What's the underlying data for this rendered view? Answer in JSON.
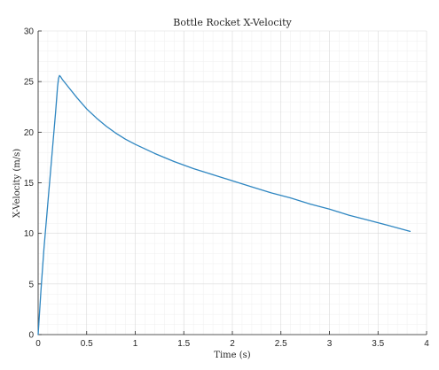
{
  "chart_data": {
    "type": "line",
    "title": "Bottle Rocket X-Velocity",
    "xlabel": "Time (s)",
    "ylabel": "X-Velocity (m/s)",
    "xlim": [
      0,
      4
    ],
    "ylim": [
      0,
      30
    ],
    "xticks": [
      0,
      0.5,
      1,
      1.5,
      2,
      2.5,
      3,
      3.5,
      4
    ],
    "xtick_labels": [
      "0",
      "0.5",
      "1",
      "1.5",
      "2",
      "2.5",
      "3",
      "3.5",
      "4"
    ],
    "yticks": [
      0,
      5,
      10,
      15,
      20,
      25,
      30
    ],
    "ytick_labels": [
      "0",
      "5",
      "10",
      "15",
      "20",
      "25",
      "30"
    ],
    "grid": true,
    "minor_grid": true,
    "line_color": "#2e86c1",
    "series": [
      {
        "x": [
          0,
          0.03,
          0.06,
          0.1,
          0.14,
          0.18,
          0.2,
          0.21,
          0.22,
          0.23,
          0.25,
          0.3,
          0.4,
          0.5,
          0.6,
          0.7,
          0.8,
          0.9,
          1.0,
          1.2,
          1.4,
          1.6,
          1.8,
          2.0,
          2.2,
          2.4,
          2.6,
          2.8,
          3.0,
          3.2,
          3.4,
          3.6,
          3.83
        ],
        "y": [
          0,
          4.5,
          8.5,
          13,
          17.5,
          22,
          24.5,
          25.3,
          25.6,
          25.5,
          25.2,
          24.6,
          23.4,
          22.3,
          21.4,
          20.6,
          19.9,
          19.3,
          18.8,
          17.9,
          17.1,
          16.4,
          15.8,
          15.2,
          14.6,
          14.0,
          13.5,
          12.9,
          12.4,
          11.8,
          11.3,
          10.8,
          10.2
        ]
      }
    ]
  }
}
